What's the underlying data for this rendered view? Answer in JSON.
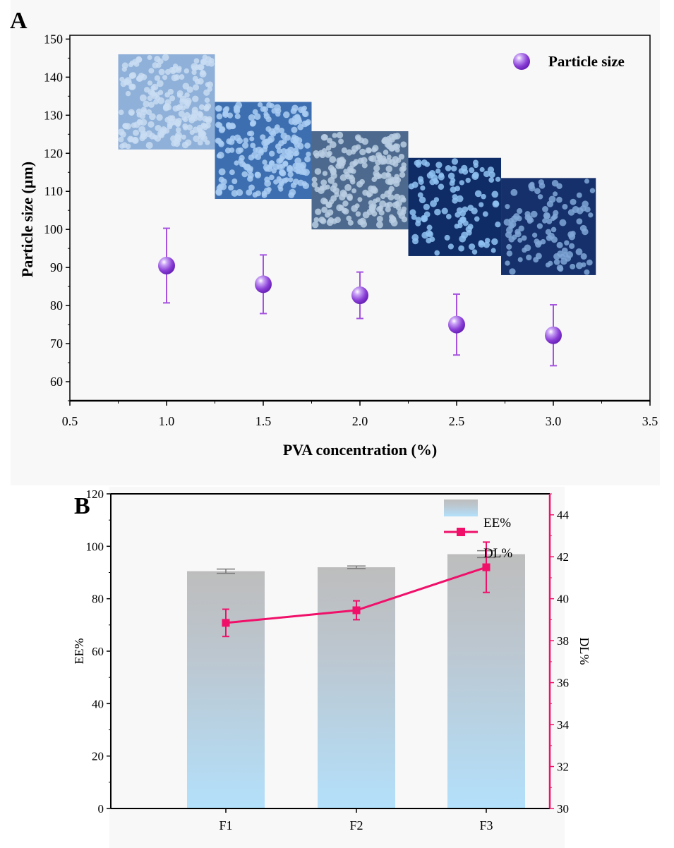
{
  "chart_data": [
    {
      "panel_label": "A",
      "type": "scatter",
      "xlabel": "PVA concentration (%)",
      "ylabel": "Particle size (µm)",
      "xlim": [
        0.5,
        3.5
      ],
      "ylim": [
        55,
        151
      ],
      "xticks": [
        "0.5",
        "1.0",
        "1.5",
        "2.0",
        "2.5",
        "3.0",
        "3.5"
      ],
      "yticks": [
        "60",
        "70",
        "80",
        "90",
        "100",
        "110",
        "120",
        "130",
        "140",
        "150"
      ],
      "grid": false,
      "legend_position": "top-right",
      "series": [
        {
          "name": "Particle size",
          "color": "#8a3fd6",
          "x": [
            1.0,
            1.5,
            2.0,
            2.5,
            3.0
          ],
          "y": [
            90.5,
            85.6,
            82.7,
            75.0,
            72.2
          ],
          "error": [
            9.8,
            7.7,
            6.1,
            8.0,
            8.0
          ]
        }
      ]
    },
    {
      "panel_label": "B",
      "type": "bar",
      "categories": [
        "F1",
        "F2",
        "F3"
      ],
      "ylabel": "EE%",
      "y2label": "DL%",
      "ylim": [
        0,
        120
      ],
      "y2lim": [
        30,
        45
      ],
      "yticks": [
        "0",
        "20",
        "40",
        "60",
        "80",
        "100",
        "120"
      ],
      "y2ticks": [
        "30",
        "32",
        "34",
        "36",
        "38",
        "40",
        "42",
        "44"
      ],
      "legend_position": "top-right",
      "series": [
        {
          "name": "EE%",
          "type": "bar",
          "axis": "left",
          "values": [
            90.5,
            92.0,
            97.0
          ],
          "error": [
            0.8,
            0.5,
            1.3
          ],
          "color": "#bdbdbd"
        },
        {
          "name": "DL%",
          "type": "line",
          "axis": "right",
          "values": [
            38.85,
            39.45,
            41.5
          ],
          "error": [
            0.65,
            0.45,
            1.2
          ],
          "color": "#f0106a"
        }
      ]
    }
  ]
}
